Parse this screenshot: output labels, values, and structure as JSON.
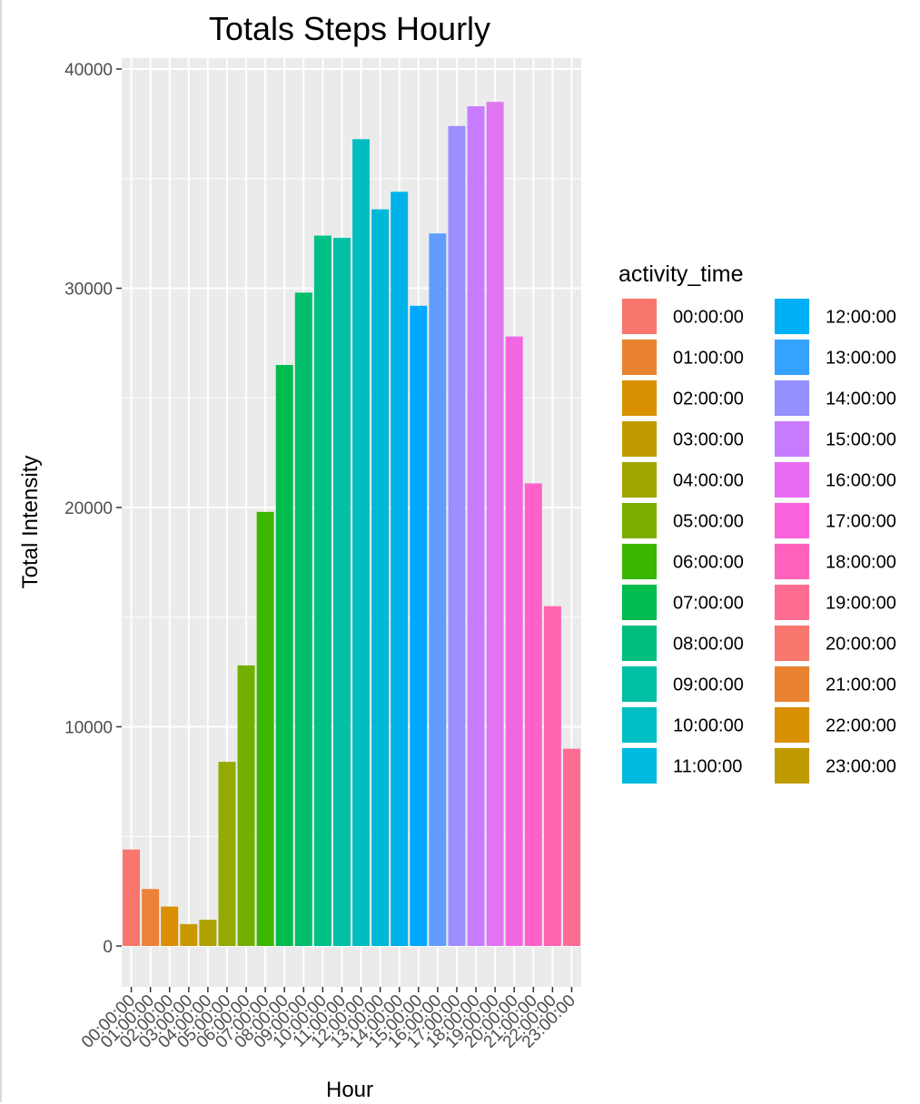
{
  "chart_data": {
    "type": "bar",
    "title": "Totals Steps Hourly",
    "xlabel": "Hour",
    "ylabel": "Total Intensity",
    "ylim": [
      -2000,
      40500
    ],
    "yticks": [
      0,
      10000,
      20000,
      30000,
      40000
    ],
    "grid": true,
    "legend": {
      "title": "activity_time",
      "position": "right",
      "columns": 2
    },
    "categories": [
      "00:00:00",
      "01:00:00",
      "02:00:00",
      "03:00:00",
      "04:00:00",
      "05:00:00",
      "06:00:00",
      "07:00:00",
      "08:00:00",
      "09:00:00",
      "10:00:00",
      "11:00:00",
      "12:00:00",
      "13:00:00",
      "14:00:00",
      "15:00:00",
      "16:00:00",
      "17:00:00",
      "18:00:00",
      "19:00:00",
      "20:00:00",
      "21:00:00",
      "22:00:00",
      "23:00:00"
    ],
    "values": [
      4400,
      2600,
      1800,
      1000,
      1200,
      8400,
      12800,
      19800,
      26500,
      29800,
      32400,
      32300,
      36800,
      33600,
      34400,
      29200,
      32500,
      37400,
      38300,
      38500,
      27800,
      21100,
      15500,
      9000
    ],
    "colors": [
      "#F8766D",
      "#EA8331",
      "#D89000",
      "#C09B00",
      "#A3A500",
      "#7CAE00",
      "#39B600",
      "#00BB4E",
      "#00BF7D",
      "#00C1A3",
      "#00BFC4",
      "#00BAE0",
      "#00B0F6",
      "#35A2FF",
      "#9590FF",
      "#C77CFF",
      "#E76BF3",
      "#FA62DB",
      "#FF62BC",
      "#FF6C91",
      "#F8766D",
      "#EA8331",
      "#D89000",
      "#C09B00"
    ],
    "bar_colors": [
      "#F8766D",
      "#EC8239",
      "#DB8E00",
      "#C79800",
      "#AFA100",
      "#94AA00",
      "#72B000",
      "#3DB600",
      "#00BB4E",
      "#00BE6C",
      "#00C087",
      "#00C1A7",
      "#00BDC2",
      "#00B8D8",
      "#00B2EA",
      "#00A9FF",
      "#619CFF",
      "#9C8EFF",
      "#C77CFF",
      "#E076F1",
      "#F366E2",
      "#FF61C9",
      "#FF64B0",
      "#FF6C91"
    ]
  }
}
